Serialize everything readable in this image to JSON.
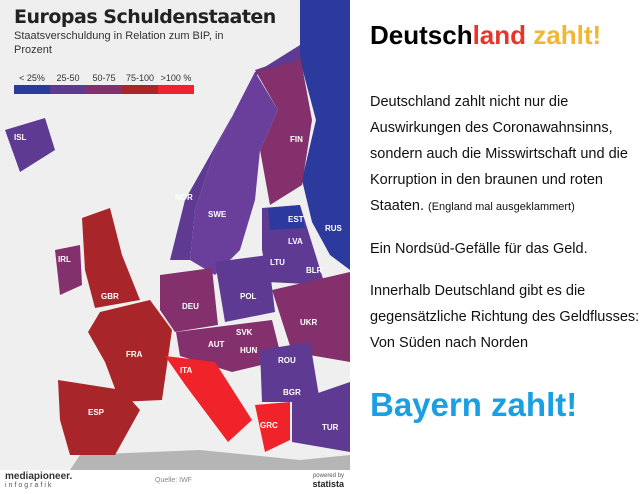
{
  "map": {
    "title": "Europas Schuldenstaaten",
    "subtitle": "Staatsverschuldung in Relation zum BIP, in Prozent",
    "legend": [
      {
        "label": "< 25%",
        "color": "#2b3a9c"
      },
      {
        "label": "25-50",
        "color": "#5e3a93"
      },
      {
        "label": "50-75",
        "color": "#83306c"
      },
      {
        "label": "75-100",
        "color": "#a8262a"
      },
      {
        "label": ">100 %",
        "color": "#f0222a"
      }
    ],
    "countries": [
      {
        "code": "ISL",
        "cat": 1
      },
      {
        "code": "NOR",
        "cat": 1
      },
      {
        "code": "SWE",
        "cat": 1
      },
      {
        "code": "FIN",
        "cat": 2
      },
      {
        "code": "RUS",
        "cat": 0
      },
      {
        "code": "EST",
        "cat": 0
      },
      {
        "code": "LVA",
        "cat": 1
      },
      {
        "code": "LTU",
        "cat": 1
      },
      {
        "code": "BLR",
        "cat": 1
      },
      {
        "code": "IRL",
        "cat": 2
      },
      {
        "code": "GBR",
        "cat": 3
      },
      {
        "code": "DEU",
        "cat": 2
      },
      {
        "code": "POL",
        "cat": 1
      },
      {
        "code": "UKR",
        "cat": 2
      },
      {
        "code": "FRA",
        "cat": 3
      },
      {
        "code": "SVK",
        "cat": 2
      },
      {
        "code": "AUT",
        "cat": 2
      },
      {
        "code": "HUN",
        "cat": 2
      },
      {
        "code": "ROU",
        "cat": 1
      },
      {
        "code": "ITA",
        "cat": 4
      },
      {
        "code": "BGR",
        "cat": 1
      },
      {
        "code": "ESP",
        "cat": 3
      },
      {
        "code": "GRC",
        "cat": 4
      },
      {
        "code": "TUR",
        "cat": 1
      }
    ],
    "source": "Quelle: IWF",
    "brand": "mediapioneer.",
    "brand_sub": "infografik",
    "powered": "powered by",
    "statista": "statista"
  },
  "right": {
    "h_part1": "Deutsch",
    "h_part2": "land",
    "h_part3": " zahlt!",
    "p1": "Deutschland zahlt nicht nur die Auswirkungen des Coronawahnsinns, sondern auch die Misswirtschaft und die Korruption in den braunen und roten Staaten.",
    "p1_note": "(England mal ausgeklammert)",
    "p2": "Ein Nordsüd-Gefälle für das Geld.",
    "p3": "Innerhalb Deutschland gibt es die gegensätzliche Richtung des Geldflusses: Von Süden nach Norden",
    "closing": "Bayern zahlt!"
  }
}
